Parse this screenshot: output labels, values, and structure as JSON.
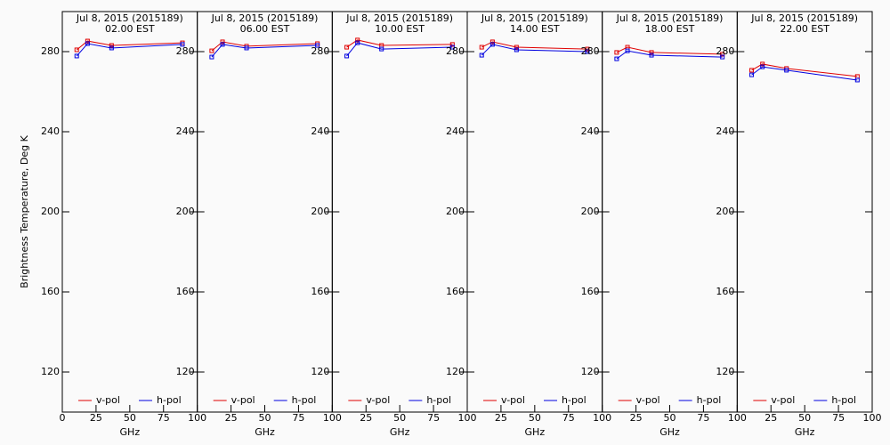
{
  "chart_data": [
    {
      "type": "line",
      "title": "Jul  8, 2015 (2015189)",
      "subtitle": "02.00 EST",
      "xlabel": "GHz",
      "ylabel": "Brightness Temperature, Deg K",
      "x": [
        10.7,
        18.7,
        36.5,
        89.0
      ],
      "xlim": [
        0,
        100
      ],
      "xticks": [
        0,
        25,
        50,
        75,
        100
      ],
      "ylim": [
        100,
        300
      ],
      "yticks": [
        120,
        160,
        200,
        240,
        280
      ],
      "series": [
        {
          "name": "v-pol",
          "color": "#e00000",
          "values": [
            280.9,
            285.3,
            283.1,
            284.4
          ]
        },
        {
          "name": "h-pol",
          "color": "#0000e0",
          "values": [
            277.8,
            284.0,
            281.8,
            283.6
          ]
        }
      ]
    },
    {
      "type": "line",
      "title": "Jul  8, 2015 (2015189)",
      "subtitle": "06.00 EST",
      "xlabel": "GHz",
      "x": [
        10.7,
        18.7,
        36.5,
        89.0
      ],
      "xlim": [
        0,
        100
      ],
      "xticks": [
        25,
        50,
        75,
        100
      ],
      "ylim": [
        100,
        300
      ],
      "yticks": [
        120,
        160,
        200,
        240,
        280
      ],
      "series": [
        {
          "name": "v-pol",
          "color": "#e00000",
          "values": [
            280.4,
            284.9,
            282.7,
            284.0
          ]
        },
        {
          "name": "h-pol",
          "color": "#0000e0",
          "values": [
            277.3,
            283.6,
            281.8,
            283.1
          ]
        }
      ]
    },
    {
      "type": "line",
      "title": "Jul  8, 2015 (2015189)",
      "subtitle": "10.00 EST",
      "xlabel": "GHz",
      "x": [
        10.7,
        18.7,
        36.5,
        89.0
      ],
      "xlim": [
        0,
        100
      ],
      "xticks": [
        25,
        50,
        75,
        100
      ],
      "ylim": [
        100,
        300
      ],
      "yticks": [
        120,
        160,
        200,
        240,
        280
      ],
      "series": [
        {
          "name": "v-pol",
          "color": "#e00000",
          "values": [
            282.2,
            285.8,
            283.1,
            283.6
          ]
        },
        {
          "name": "h-pol",
          "color": "#0000e0",
          "values": [
            277.8,
            284.4,
            281.3,
            282.2
          ]
        }
      ]
    },
    {
      "type": "line",
      "title": "Jul  8, 2015 (2015189)",
      "subtitle": "14.00 EST",
      "xlabel": "GHz",
      "x": [
        10.7,
        18.7,
        36.5,
        89.0
      ],
      "xlim": [
        0,
        100
      ],
      "xticks": [
        25,
        50,
        75,
        100
      ],
      "ylim": [
        100,
        300
      ],
      "yticks": [
        120,
        160,
        200,
        240,
        280
      ],
      "series": [
        {
          "name": "v-pol",
          "color": "#e00000",
          "values": [
            282.2,
            284.9,
            282.2,
            281.3
          ]
        },
        {
          "name": "h-pol",
          "color": "#0000e0",
          "values": [
            278.2,
            283.6,
            280.9,
            280.0
          ]
        }
      ]
    },
    {
      "type": "line",
      "title": "Jul  8, 2015 (2015189)",
      "subtitle": "18.00 EST",
      "xlabel": "GHz",
      "x": [
        10.7,
        18.7,
        36.5,
        89.0
      ],
      "xlim": [
        0,
        100
      ],
      "xticks": [
        25,
        50,
        75,
        100
      ],
      "ylim": [
        100,
        300
      ],
      "yticks": [
        120,
        160,
        200,
        240,
        280
      ],
      "series": [
        {
          "name": "v-pol",
          "color": "#e00000",
          "values": [
            279.6,
            282.2,
            279.6,
            278.7
          ]
        },
        {
          "name": "h-pol",
          "color": "#0000e0",
          "values": [
            276.4,
            280.4,
            278.2,
            277.3
          ]
        }
      ]
    },
    {
      "type": "line",
      "title": "Jul  8, 2015 (2015189)",
      "subtitle": "22.00 EST",
      "xlabel": "GHz",
      "x": [
        10.7,
        18.7,
        36.5,
        89.0
      ],
      "xlim": [
        0,
        100
      ],
      "xticks": [
        25,
        50,
        75,
        100
      ],
      "ylim": [
        100,
        300
      ],
      "yticks": [
        120,
        160,
        200,
        240,
        280
      ],
      "series": [
        {
          "name": "v-pol",
          "color": "#e00000",
          "values": [
            270.7,
            273.8,
            271.6,
            267.6
          ]
        },
        {
          "name": "h-pol",
          "color": "#0000e0",
          "values": [
            268.4,
            272.4,
            270.7,
            265.8
          ]
        }
      ]
    }
  ]
}
